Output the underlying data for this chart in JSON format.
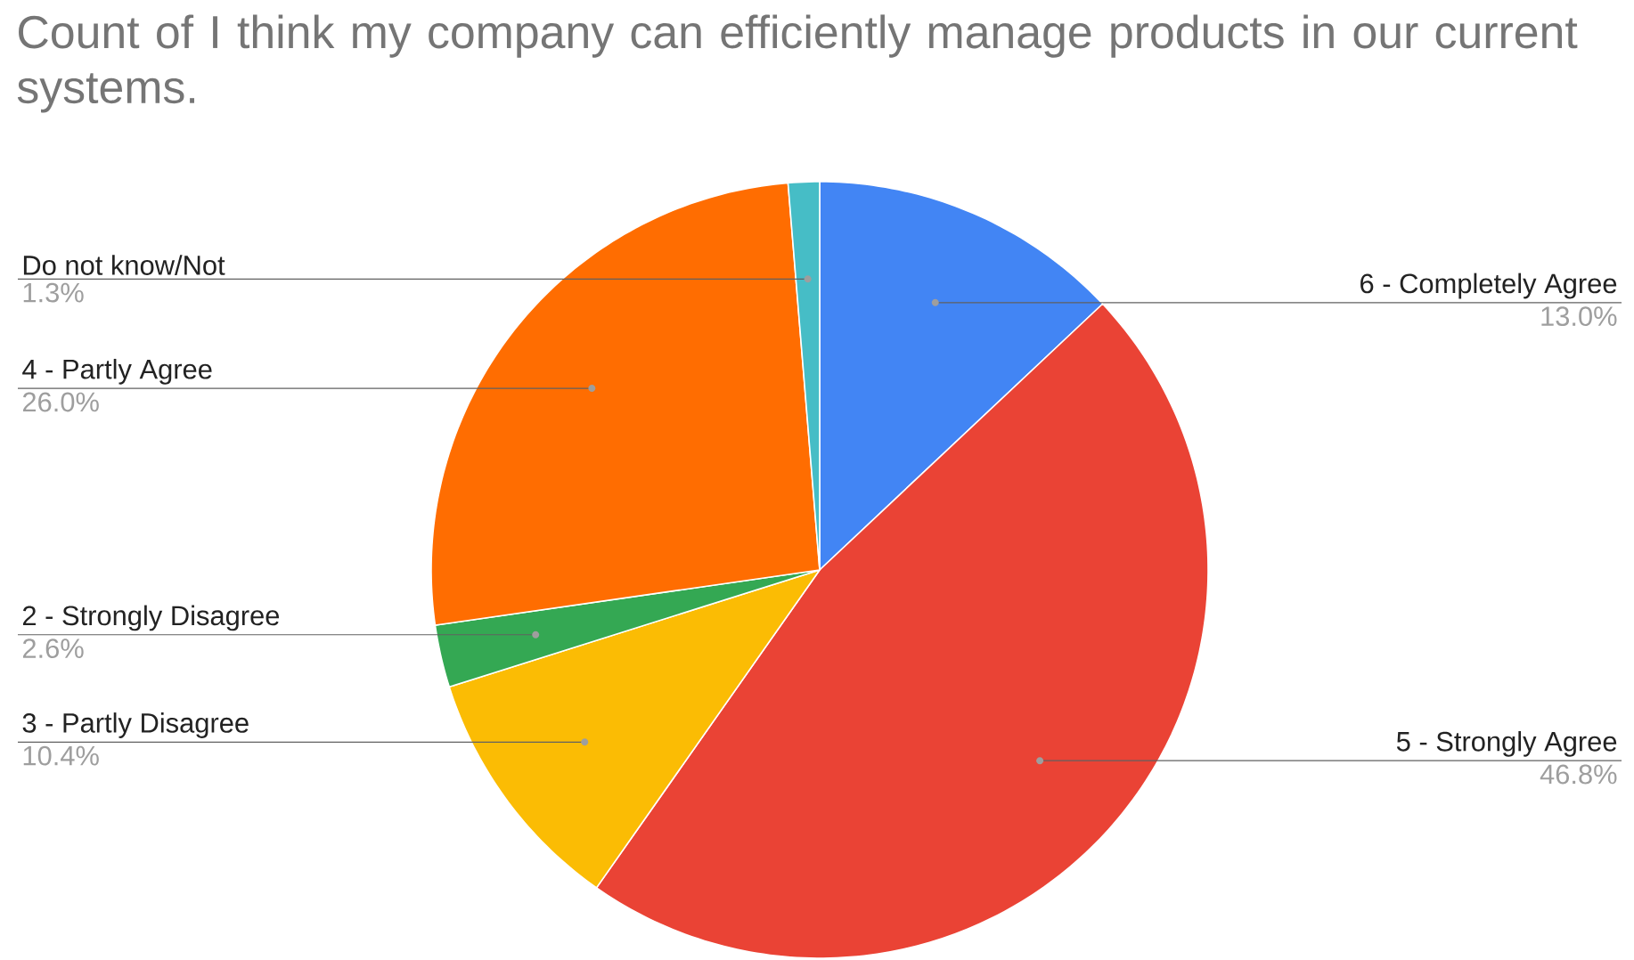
{
  "chart_data": {
    "type": "pie",
    "title": "Count of I think my company can efficiently manage products in our current systems.",
    "categories": [
      "6 - Completely Agree",
      "5 - Strongly Agree",
      "3 - Partly Disagree",
      "2 - Strongly Disagree",
      "4 - Partly Agree",
      "Do not know/Not"
    ],
    "values": [
      13.0,
      46.8,
      10.4,
      2.6,
      26.0,
      1.3
    ],
    "colors": [
      "#4285f4",
      "#ea4335",
      "#fbbc04",
      "#34a853",
      "#ff6d01",
      "#46bdc6"
    ],
    "value_labels": [
      "13.0%",
      "46.8%",
      "10.4%",
      "2.6%",
      "26.0%",
      "1.3%"
    ]
  }
}
